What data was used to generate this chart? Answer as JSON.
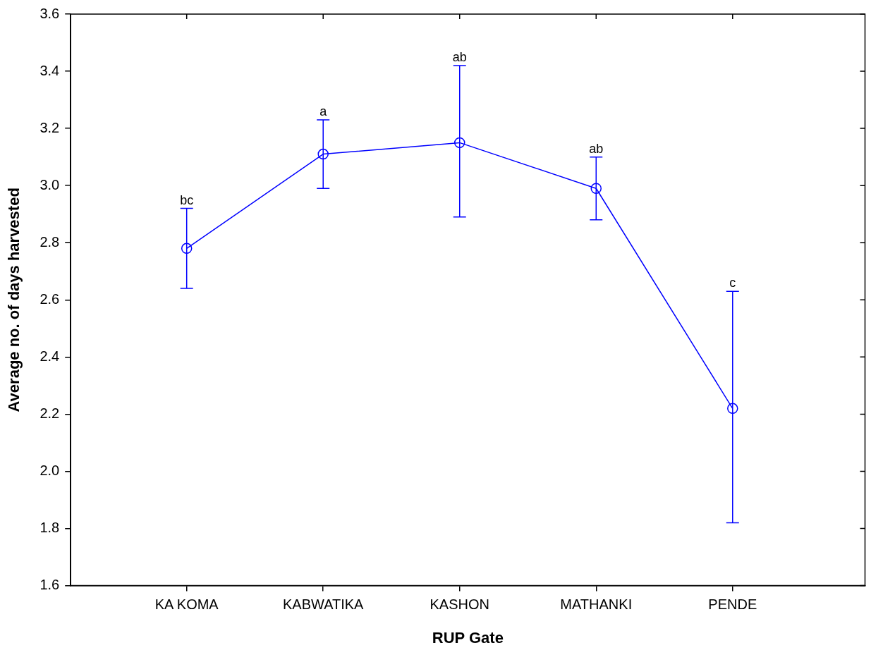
{
  "chart_data": {
    "type": "line",
    "xlabel": "RUP Gate",
    "ylabel": "Average no. of days harvested",
    "categories": [
      "KA KOMA",
      "KABWATIKA",
      "KASHON",
      "MATHANKI",
      "PENDE"
    ],
    "series": [
      {
        "color": "#0000ff",
        "values": [
          2.78,
          3.11,
          3.15,
          2.99,
          2.22
        ],
        "errors": [
          [
            2.64,
            2.92
          ],
          [
            2.99,
            3.23
          ],
          [
            2.89,
            3.42
          ],
          [
            2.88,
            3.1
          ],
          [
            1.82,
            2.63
          ]
        ]
      }
    ],
    "ylim": [
      1.6,
      3.6
    ],
    "yticks": [
      {
        "value": 1.6,
        "label": "1.6"
      },
      {
        "value": 1.8,
        "label": "1.8"
      },
      {
        "value": 2.0,
        "label": "2.0"
      },
      {
        "value": 2.2,
        "label": "2.2"
      },
      {
        "value": 2.4,
        "label": "2.4"
      },
      {
        "value": 2.6,
        "label": "2.6"
      },
      {
        "value": 2.8,
        "label": "2.8"
      },
      {
        "value": 3.0,
        "label": "3.0"
      },
      {
        "value": 3.2,
        "label": "3.2"
      },
      {
        "value": 3.4,
        "label": "3.4"
      },
      {
        "value": 3.6,
        "label": "3.6"
      }
    ],
    "marker": "circle",
    "line_style": "solid",
    "grid": false,
    "legend": false,
    "annotations": [
      {
        "text": "bc",
        "x": "KA KOMA",
        "y": 2.92
      },
      {
        "text": "a",
        "x": "KABWATIKA",
        "y": 3.23
      },
      {
        "text": "ab",
        "x": "KASHON",
        "y": 3.42
      },
      {
        "text": "ab",
        "x": "MATHANKI",
        "y": 3.1
      },
      {
        "text": "c",
        "x": "PENDE",
        "y": 2.63
      }
    ]
  }
}
